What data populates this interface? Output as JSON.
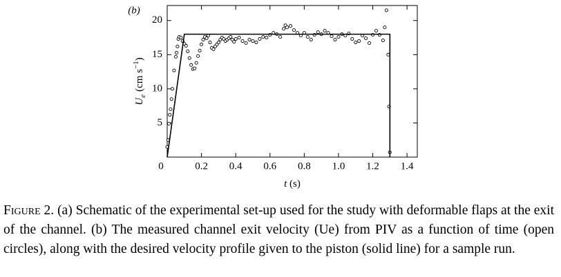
{
  "chart_data": {
    "type": "scatter",
    "panel_label": "(b)",
    "xlabel": [
      "t",
      "(s)"
    ],
    "ylabel": [
      "U",
      "e",
      "(cm s",
      "−1",
      ")"
    ],
    "xlim": [
      0,
      1.46
    ],
    "ylim": [
      0,
      22.2
    ],
    "xticks": [
      0,
      0.2,
      0.4,
      0.6,
      0.8,
      {
        "value": 1.0,
        "label": "1.0"
      },
      1.2,
      1.4
    ],
    "yticks": [
      5,
      10,
      15,
      20
    ],
    "series": [
      {
        "type": "scatter",
        "color": "#000000",
        "x": [
          0.0,
          0.005,
          0.01,
          0.015,
          0.02,
          0.025,
          0.03,
          0.04,
          0.05,
          0.055,
          0.06,
          0.065,
          0.07,
          0.08,
          0.09,
          0.1,
          0.11,
          0.12,
          0.13,
          0.14,
          0.15,
          0.16,
          0.17,
          0.18,
          0.19,
          0.2,
          0.21,
          0.22,
          0.23,
          0.24,
          0.25,
          0.26,
          0.27,
          0.28,
          0.29,
          0.3,
          0.31,
          0.32,
          0.33,
          0.34,
          0.35,
          0.36,
          0.37,
          0.38,
          0.39,
          0.4,
          0.42,
          0.44,
          0.46,
          0.48,
          0.5,
          0.52,
          0.54,
          0.56,
          0.58,
          0.6,
          0.62,
          0.64,
          0.66,
          0.68,
          0.69,
          0.7,
          0.72,
          0.74,
          0.76,
          0.78,
          0.8,
          0.82,
          0.84,
          0.86,
          0.88,
          0.9,
          0.92,
          0.94,
          0.96,
          0.98,
          1.0,
          1.02,
          1.04,
          1.06,
          1.08,
          1.1,
          1.12,
          1.14,
          1.16,
          1.18,
          1.2,
          1.22,
          1.24,
          1.26,
          1.27,
          1.28,
          1.29,
          1.295,
          1.3
        ],
        "values": [
          1.5,
          2.5,
          4.9,
          6.2,
          7.0,
          8.5,
          10.0,
          12.7,
          14.7,
          15.3,
          16.2,
          17.3,
          17.6,
          17.5,
          17.0,
          16.6,
          16.3,
          15.5,
          14.5,
          13.5,
          12.9,
          13.0,
          13.8,
          14.8,
          15.6,
          16.5,
          17.2,
          17.6,
          17.4,
          17.8,
          16.8,
          16.0,
          15.8,
          16.2,
          16.5,
          16.8,
          17.2,
          17.5,
          17.3,
          17.0,
          17.2,
          17.4,
          17.6,
          17.2,
          16.9,
          17.3,
          17.5,
          17.0,
          16.7,
          17.2,
          17.0,
          16.8,
          17.3,
          17.6,
          17.5,
          17.9,
          18.2,
          18.0,
          17.6,
          18.8,
          19.3,
          19.0,
          19.2,
          18.6,
          18.2,
          17.8,
          18.2,
          17.6,
          17.2,
          17.9,
          18.3,
          18.0,
          18.5,
          18.2,
          17.7,
          17.2,
          17.6,
          18.0,
          17.8,
          18.1,
          17.3,
          16.8,
          17.0,
          17.8,
          17.4,
          16.7,
          17.9,
          18.5,
          17.9,
          17.1,
          19.0,
          21.5,
          15.0,
          7.4,
          0.7
        ]
      },
      {
        "type": "line",
        "color": "#000000",
        "x": [
          0,
          0.1,
          1.3,
          1.3
        ],
        "values": [
          0,
          18,
          18,
          0
        ]
      }
    ]
  },
  "caption": {
    "label": "Figure 2.",
    "text": "(a) Schematic of the experimental set-up used for the study with deformable flaps at the exit of the channel. (b) The measured channel exit velocity (Ue) from PIV as a function of time (open circles), along with the desired velocity profile given to the piston (solid line) for a sample run."
  }
}
